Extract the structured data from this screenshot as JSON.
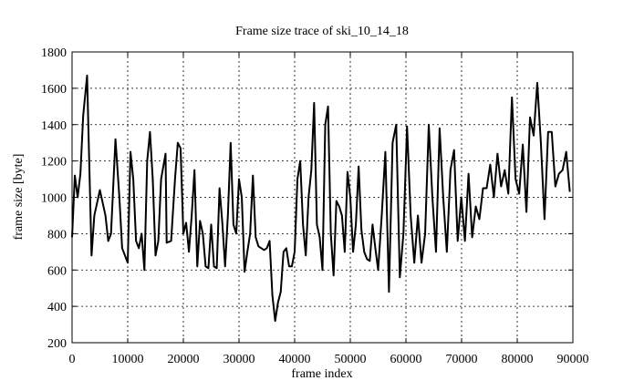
{
  "chart_data": {
    "type": "line",
    "title": "Frame size trace of ski_10_14_18",
    "x_label": "frame index",
    "y_label": "frame size [byte]",
    "xlim": [
      0,
      90000
    ],
    "xticks": [
      0,
      10000,
      20000,
      30000,
      40000,
      50000,
      60000,
      70000,
      80000,
      90000
    ],
    "ylim": [
      200,
      1800
    ],
    "yticks": [
      200,
      400,
      600,
      800,
      1000,
      1200,
      1400,
      1600,
      1800
    ],
    "grid": true,
    "series": [
      {
        "color": "#000000",
        "x": [
          0,
          500,
          1000,
          1500,
          2000,
          2700,
          3500,
          4000,
          5000,
          6000,
          6500,
          7000,
          7800,
          8500,
          9000,
          10000,
          10500,
          11000,
          11500,
          12000,
          12500,
          13000,
          13500,
          14000,
          14500,
          15000,
          15500,
          16000,
          16800,
          17000,
          17800,
          18500,
          19000,
          19500,
          20000,
          20500,
          21000,
          21500,
          22000,
          22500,
          23000,
          23500,
          24000,
          24500,
          25000,
          25500,
          26000,
          26500,
          27000,
          27500,
          28000,
          28500,
          29000,
          29500,
          30000,
          30500,
          31000,
          31500,
          32000,
          32500,
          33000,
          33500,
          34000,
          34500,
          35000,
          35500,
          36000,
          36500,
          37000,
          37500,
          38000,
          38500,
          39000,
          39500,
          40000,
          40500,
          41000,
          41500,
          42000,
          42500,
          43000,
          43500,
          44000,
          44500,
          45000,
          45500,
          46000,
          46500,
          47000,
          47500,
          48000,
          48500,
          49000,
          49500,
          50000,
          50500,
          51000,
          51500,
          52000,
          52500,
          53000,
          53500,
          54000,
          54500,
          55000,
          55650,
          56300,
          56950,
          57600,
          58250,
          58900,
          59550,
          60200,
          60850,
          61500,
          62150,
          62800,
          63450,
          64100,
          64750,
          65400,
          66050,
          66700,
          67350,
          68000,
          68650,
          69300,
          69950,
          70600,
          71250,
          71900,
          72550,
          73200,
          73850,
          74500,
          75150,
          75800,
          76450,
          77100,
          77750,
          78400,
          79050,
          79700,
          80350,
          81000,
          81650,
          82300,
          82950,
          83600,
          84250,
          84900,
          85550,
          86200,
          86850,
          87500,
          88150,
          88800,
          89450
        ],
        "values": [
          780,
          1120,
          1000,
          1130,
          1450,
          1670,
          680,
          900,
          1040,
          900,
          760,
          800,
          1320,
          1000,
          720,
          640,
          1250,
          1100,
          760,
          720,
          800,
          600,
          1200,
          1360,
          1100,
          680,
          760,
          1100,
          1240,
          750,
          760,
          1100,
          1300,
          1270,
          800,
          860,
          700,
          900,
          1150,
          620,
          870,
          800,
          620,
          610,
          850,
          620,
          610,
          1050,
          860,
          620,
          900,
          1300,
          850,
          800,
          1100,
          1000,
          590,
          700,
          800,
          1120,
          780,
          730,
          720,
          710,
          720,
          760,
          460,
          320,
          420,
          480,
          700,
          720,
          620,
          620,
          700,
          1100,
          1200,
          850,
          680,
          1000,
          1150,
          1520,
          850,
          780,
          600,
          1400,
          1500,
          800,
          570,
          980,
          950,
          900,
          700,
          1140,
          1000,
          700,
          850,
          1170,
          820,
          700,
          660,
          650,
          850,
          720,
          600,
          900,
          1250,
          480,
          1300,
          1400,
          560,
          800,
          1390,
          900,
          640,
          900,
          640,
          800,
          1400,
          1000,
          700,
          1380,
          1000,
          700,
          1150,
          1260,
          760,
          1000,
          760,
          1130,
          780,
          950,
          880,
          1050,
          1050,
          1180,
          1000,
          1240,
          1060,
          1150,
          1020,
          1550,
          1100,
          1020,
          1290,
          920,
          1440,
          1340,
          1630,
          1300,
          880,
          1360,
          1360,
          1060,
          1130,
          1150,
          1250,
          1030
        ]
      }
    ]
  }
}
